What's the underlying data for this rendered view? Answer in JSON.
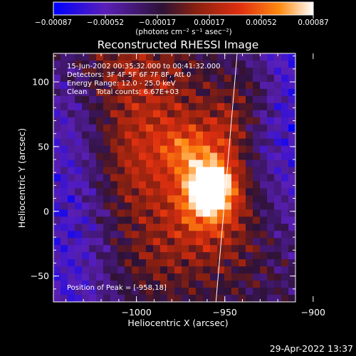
{
  "chart_data": {
    "type": "heatmap",
    "title": "Reconstructed RHESSI Image",
    "xlabel": "Heliocentric X (arcsec)",
    "ylabel": "Heliocentric Y (arcsec)",
    "xlim": [
      -1047,
      -910
    ],
    "ylim": [
      -70,
      122
    ],
    "xticks": [
      {
        "value": -1000,
        "label": "−1000"
      },
      {
        "value": -950,
        "label": "−950"
      },
      {
        "value": -900,
        "label": "−900"
      }
    ],
    "yticks": [
      {
        "value": 100,
        "label": "100"
      },
      {
        "value": 50,
        "label": "50"
      },
      {
        "value": 0,
        "label": "0"
      },
      {
        "value": -50,
        "label": "−50"
      }
    ],
    "colorbar": {
      "range": [
        -0.00087,
        0.00087
      ],
      "ticks": [
        "−0.00087",
        "−0.00052",
        "−0.00017",
        "0.00017",
        "0.00052",
        "0.00087"
      ],
      "unit": "(photons cm⁻² s⁻¹ asec⁻²)",
      "colormap": [
        "#0000ff",
        "#5a1fb8",
        "#2e1236",
        "#8a2010",
        "#e03010",
        "#ff8a10",
        "#ffffff"
      ]
    },
    "peak": {
      "x": -958,
      "y": 18
    },
    "limb_line_x": [
      -943,
      -955
    ]
  },
  "annotations": {
    "line1": "15-Jun-2002 00:35:32.000 to 00:41:32.000",
    "line2": "Detectors: 3F 4F 5F 6F 7F 8F, Att 0",
    "line3": "Energy Range: 12.0 - 25.0 keV",
    "line4": "Clean    Total counts: 6.67E+03",
    "peak_text": "Position of Peak = [-958,18]"
  },
  "timestamp": "29-Apr-2022 13:37"
}
